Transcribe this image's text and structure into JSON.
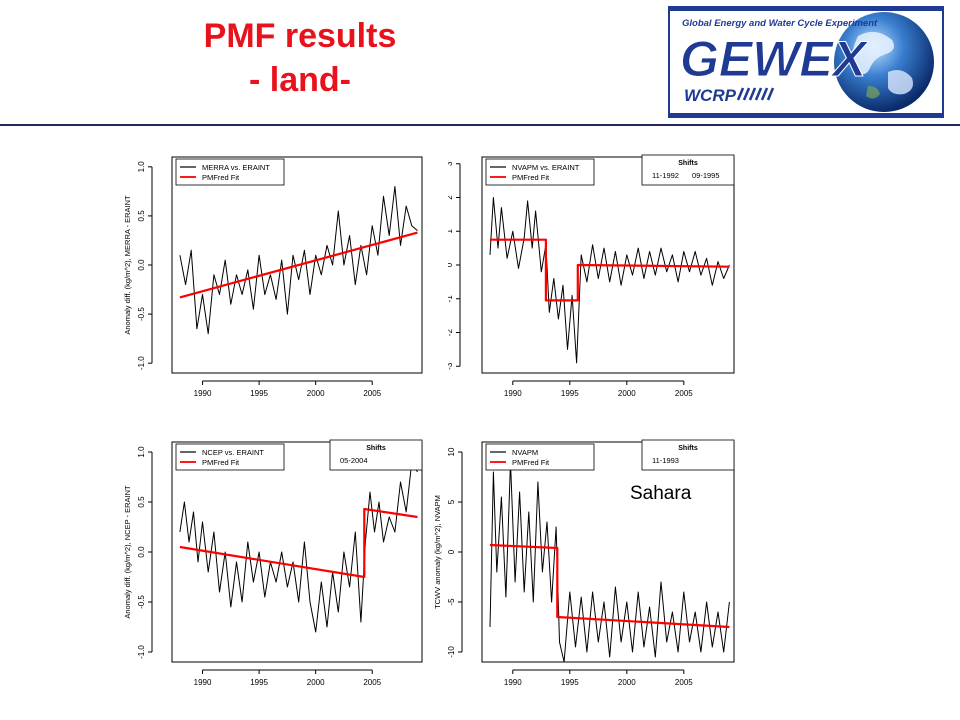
{
  "slide": {
    "title_line1": "PMF results",
    "title_line2": "- land-",
    "annotation": "Sahara",
    "title_color": "#e8111c",
    "rule_color": "#23285a"
  },
  "logo": {
    "tagline": "Global Energy and Water Cycle Experiment",
    "wordmark": "GEWEX",
    "sub": "WCRP",
    "icon": "earth-globe-icon",
    "frame_color": "#1f3a93"
  },
  "chart_data": [
    {
      "type": "line",
      "xlabel": "",
      "ylabel": "Anomaly diff. (kg/m^2), MERRA - ERAINT",
      "xlim": [
        1987.3,
        2009.4
      ],
      "ylim": [
        -1.1,
        1.1
      ],
      "xticks": [
        "1990",
        "1995",
        "2000",
        "2005"
      ],
      "yticks": [
        "-1.0",
        "-0.5",
        "0.0",
        "0.5",
        "1.0"
      ],
      "legend": [
        "MERRA vs. ERAINT",
        "PMFred Fit"
      ],
      "legend_position": "top-left",
      "series": [
        {
          "name": "MERRA vs. ERAINT",
          "color": "#000000",
          "x": [
            1988.0,
            1988.5,
            1989.0,
            1989.5,
            1990.0,
            1990.5,
            1991.0,
            1991.5,
            1992.0,
            1992.5,
            1993.0,
            1993.5,
            1994.0,
            1994.5,
            1995.0,
            1995.5,
            1996.0,
            1996.5,
            1997.0,
            1997.5,
            1998.0,
            1998.5,
            1999.0,
            1999.5,
            2000.0,
            2000.5,
            2001.0,
            2001.5,
            2002.0,
            2002.5,
            2003.0,
            2003.5,
            2004.0,
            2004.5,
            2005.0,
            2005.5,
            2006.0,
            2006.5,
            2007.0,
            2007.5,
            2008.0,
            2008.5,
            2009.0
          ],
          "y": [
            0.1,
            -0.2,
            0.15,
            -0.65,
            -0.3,
            -0.7,
            -0.1,
            -0.3,
            0.05,
            -0.4,
            -0.1,
            -0.3,
            -0.05,
            -0.45,
            0.1,
            -0.3,
            -0.1,
            -0.35,
            0.05,
            -0.5,
            0.1,
            -0.15,
            0.15,
            -0.3,
            0.1,
            -0.1,
            0.2,
            0.0,
            0.55,
            0.0,
            0.3,
            -0.2,
            0.2,
            -0.1,
            0.4,
            0.1,
            0.7,
            0.3,
            0.8,
            0.2,
            0.6,
            0.4,
            0.35
          ]
        },
        {
          "name": "PMFred Fit",
          "color": "#ff0000",
          "x": [
            1988.0,
            2009.0
          ],
          "y": [
            -0.33,
            0.33
          ]
        }
      ]
    },
    {
      "type": "line",
      "xlabel": "",
      "ylabel": "",
      "xlim": [
        1987.3,
        2009.4
      ],
      "ylim": [
        -3.2,
        3.2
      ],
      "xticks": [
        "1990",
        "1995",
        "2000",
        "2005"
      ],
      "yticks": [
        "-3",
        "-2",
        "-1",
        "0",
        "1",
        "2",
        "3"
      ],
      "legend": [
        "NVAPM vs. ERAINT",
        "PMFred Fit"
      ],
      "legend_position": "top-left",
      "shifts_title": "Shifts",
      "shifts": [
        "11-1992",
        "09-1995"
      ],
      "series": [
        {
          "name": "NVAPM vs. ERAINT",
          "color": "#000000",
          "x": [
            1988.0,
            1988.3,
            1988.7,
            1989.0,
            1989.5,
            1990.0,
            1990.5,
            1991.0,
            1991.3,
            1991.7,
            1992.0,
            1992.5,
            1992.9,
            1993.2,
            1993.6,
            1994.0,
            1994.4,
            1994.8,
            1995.2,
            1995.6,
            1996.0,
            1996.5,
            1997.0,
            1997.5,
            1998.0,
            1998.5,
            1999.0,
            1999.5,
            2000.0,
            2000.5,
            2001.0,
            2001.5,
            2002.0,
            2002.5,
            2003.0,
            2003.5,
            2004.0,
            2004.5,
            2005.0,
            2005.5,
            2006.0,
            2006.5,
            2007.0,
            2007.5,
            2008.0,
            2008.5,
            2009.0
          ],
          "y": [
            0.3,
            2.0,
            0.5,
            1.7,
            0.2,
            1.0,
            -0.1,
            0.8,
            1.9,
            0.5,
            1.6,
            -0.2,
            0.6,
            -1.4,
            -0.4,
            -1.6,
            -0.6,
            -2.5,
            -0.9,
            -2.9,
            0.3,
            -0.5,
            0.6,
            -0.4,
            0.5,
            -0.5,
            0.4,
            -0.6,
            0.3,
            -0.3,
            0.5,
            -0.4,
            0.4,
            -0.3,
            0.5,
            -0.2,
            0.3,
            -0.5,
            0.4,
            -0.2,
            0.4,
            -0.3,
            0.2,
            -0.6,
            0.1,
            -0.4,
            0.0
          ]
        },
        {
          "name": "PMFred Fit",
          "color": "#ff0000",
          "x": [
            1988.0,
            1992.9,
            1992.9,
            1995.7,
            1995.7,
            2009.0
          ],
          "y": [
            0.75,
            0.75,
            -1.05,
            -1.05,
            0.0,
            -0.05
          ]
        }
      ]
    },
    {
      "type": "line",
      "xlabel": "",
      "ylabel": "Anomaly diff. (kg/m^2), NCEP - ERAINT",
      "xlim": [
        1987.3,
        2009.4
      ],
      "ylim": [
        -1.1,
        1.1
      ],
      "xticks": [
        "1990",
        "1995",
        "2000",
        "2005"
      ],
      "yticks": [
        "-1.0",
        "-0.5",
        "0.0",
        "0.5",
        "1.0"
      ],
      "legend": [
        "NCEP vs. ERAINT",
        "PMFred Fit"
      ],
      "legend_position": "top-left",
      "shifts_title": "Shifts",
      "shifts": [
        "05-2004"
      ],
      "series": [
        {
          "name": "NCEP vs. ERAINT",
          "color": "#000000",
          "x": [
            1988.0,
            1988.4,
            1988.8,
            1989.2,
            1989.6,
            1990.0,
            1990.5,
            1991.0,
            1991.5,
            1992.0,
            1992.5,
            1993.0,
            1993.5,
            1994.0,
            1994.5,
            1995.0,
            1995.5,
            1996.0,
            1996.5,
            1997.0,
            1997.5,
            1998.0,
            1998.5,
            1999.0,
            1999.5,
            2000.0,
            2000.5,
            2001.0,
            2001.5,
            2002.0,
            2002.5,
            2003.0,
            2003.5,
            2004.0,
            2004.4,
            2004.8,
            2005.2,
            2005.6,
            2006.0,
            2006.5,
            2007.0,
            2007.5,
            2008.0,
            2008.5,
            2009.0
          ],
          "y": [
            0.2,
            0.5,
            0.1,
            0.4,
            -0.1,
            0.3,
            -0.2,
            0.2,
            -0.4,
            0.0,
            -0.55,
            -0.1,
            -0.5,
            0.1,
            -0.3,
            0.0,
            -0.45,
            -0.1,
            -0.3,
            0.0,
            -0.35,
            -0.1,
            -0.5,
            0.1,
            -0.5,
            -0.8,
            -0.3,
            -0.75,
            -0.2,
            -0.6,
            0.0,
            -0.35,
            0.2,
            -0.7,
            0.1,
            0.6,
            0.2,
            0.5,
            0.1,
            0.35,
            0.2,
            0.7,
            0.4,
            0.9,
            0.8
          ]
        },
        {
          "name": "PMFred Fit",
          "color": "#ff0000",
          "x": [
            1988.0,
            2004.3,
            2004.3,
            2009.0
          ],
          "y": [
            0.05,
            -0.25,
            0.43,
            0.35
          ]
        }
      ]
    },
    {
      "type": "line",
      "xlabel": "",
      "ylabel": "TCWV anomaly (kg/m^2), NVAPM",
      "xlim": [
        1987.3,
        2009.4
      ],
      "ylim": [
        -11,
        11
      ],
      "xticks": [
        "1990",
        "1995",
        "2000",
        "2005"
      ],
      "yticks": [
        "-10",
        "-5",
        "0",
        "5",
        "10"
      ],
      "legend": [
        "NVAPM",
        "PMFred Fit"
      ],
      "legend_position": "top-left",
      "shifts_title": "Shifts",
      "shifts": [
        "11-1993"
      ],
      "series": [
        {
          "name": "NVAPM",
          "color": "#000000",
          "x": [
            1988.0,
            1988.3,
            1988.6,
            1989.0,
            1989.4,
            1989.8,
            1990.2,
            1990.6,
            1991.0,
            1991.4,
            1991.8,
            1992.2,
            1992.6,
            1993.0,
            1993.4,
            1993.8,
            1994.1,
            1994.5,
            1995.0,
            1995.5,
            1996.0,
            1996.5,
            1997.0,
            1997.5,
            1998.0,
            1998.5,
            1999.0,
            1999.5,
            2000.0,
            2000.5,
            2001.0,
            2001.5,
            2002.0,
            2002.5,
            2003.0,
            2003.5,
            2004.0,
            2004.5,
            2005.0,
            2005.5,
            2006.0,
            2006.5,
            2007.0,
            2007.5,
            2008.0,
            2008.5,
            2009.0
          ],
          "y": [
            -7.5,
            8.0,
            -2.0,
            5.5,
            -4.5,
            9.0,
            -3.0,
            6.0,
            -4.0,
            4.0,
            -5.0,
            7.0,
            -2.0,
            3.0,
            -5.0,
            2.5,
            -9.0,
            -11.0,
            -4.0,
            -9.5,
            -4.5,
            -10.0,
            -4.0,
            -9.0,
            -5.0,
            -10.5,
            -3.5,
            -9.0,
            -5.0,
            -10.0,
            -4.0,
            -9.5,
            -5.5,
            -10.5,
            -3.0,
            -9.0,
            -6.0,
            -10.0,
            -4.0,
            -9.0,
            -6.0,
            -10.0,
            -5.0,
            -9.5,
            -6.0,
            -10.0,
            -5.0
          ]
        },
        {
          "name": "PMFred Fit",
          "color": "#ff0000",
          "x": [
            1988.0,
            1993.9,
            1993.9,
            2009.0
          ],
          "y": [
            0.7,
            0.4,
            -6.5,
            -7.5
          ]
        }
      ]
    }
  ]
}
